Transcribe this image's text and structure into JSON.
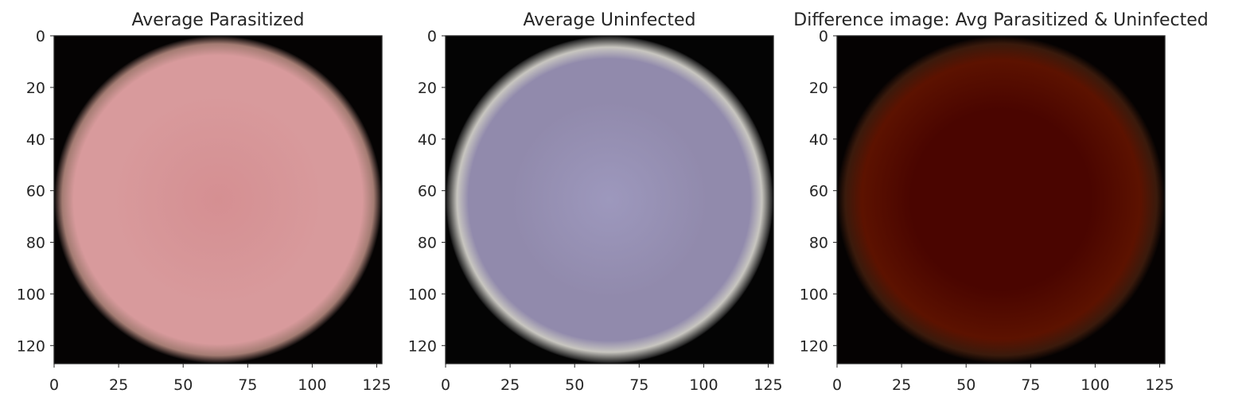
{
  "chart_data": [
    {
      "type": "image",
      "title": "Average Parasitized",
      "xlim": [
        0,
        127
      ],
      "ylim": [
        127,
        0
      ],
      "xticks": [
        0,
        25,
        50,
        75,
        100,
        125
      ],
      "yticks": [
        0,
        20,
        40,
        60,
        80,
        100,
        120
      ],
      "colors": {
        "background": "#050303",
        "core": "#d58f92",
        "body": "#d89a9c",
        "rim": "#a47c73"
      }
    },
    {
      "type": "image",
      "title": "Average Uninfected",
      "xlim": [
        0,
        127
      ],
      "ylim": [
        127,
        0
      ],
      "xticks": [
        0,
        25,
        50,
        75,
        100,
        125
      ],
      "yticks": [
        0,
        20,
        40,
        60,
        80,
        100,
        120
      ],
      "colors": {
        "background": "#040404",
        "core": "#9d98bd",
        "body": "#918aac",
        "rim": "#c8c6c0"
      }
    },
    {
      "type": "image",
      "title": "Difference image: Avg Parasitized & Uninfected",
      "xlim": [
        0,
        127
      ],
      "ylim": [
        127,
        0
      ],
      "xticks": [
        0,
        25,
        50,
        75,
        100,
        125
      ],
      "yticks": [
        0,
        20,
        40,
        60,
        80,
        100,
        120
      ],
      "colors": {
        "background": "#050202",
        "core": "#4a0500",
        "body": "#5c1200",
        "rim": "#3a1a0c"
      }
    }
  ]
}
